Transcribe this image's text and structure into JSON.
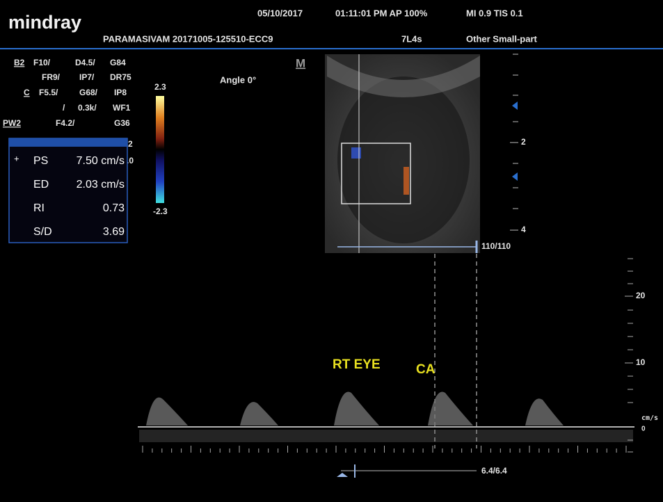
{
  "header": {
    "logo": "mindray",
    "date": "05/10/2017",
    "time": "01:11:01 PM AP 100%",
    "indices": "MI 0.9 TIS 0.1",
    "patient": "PARAMASIVAM 20171005-125510-ECC9",
    "probe": "7L4s",
    "preset": "Other Small-part"
  },
  "params": {
    "rows": [
      [
        "B2",
        "F10/",
        "D4.5/",
        "G84"
      ],
      [
        "FR9/",
        "IP7/",
        "DR75"
      ],
      [
        "C",
        "F5.5/",
        "G68/",
        "IP8"
      ],
      [
        "/",
        "0.3k/",
        "WF1"
      ],
      [
        "PW2",
        "F4.2/",
        "G36"
      ],
      [
        "2"
      ],
      [
        ".0"
      ]
    ]
  },
  "color_bar": {
    "max": "2.3",
    "min": "-2.3"
  },
  "angle": "Angle 0°",
  "m_mark": "M",
  "measurements": {
    "cursor": "+",
    "rows": [
      [
        "PS",
        "7.50 cm/s"
      ],
      [
        "ED",
        "2.03 cm/s"
      ],
      [
        "RI",
        "0.73"
      ],
      [
        "S/D",
        "3.69"
      ]
    ]
  },
  "depth_scale": [
    "2",
    "4"
  ],
  "frame": "110/110",
  "doppler_scale": {
    "ticks": [
      "20",
      "10",
      "0"
    ],
    "unit": "cm/s"
  },
  "annotations": [
    "RT EYE",
    "CA"
  ],
  "cine": "6.4/6.4"
}
